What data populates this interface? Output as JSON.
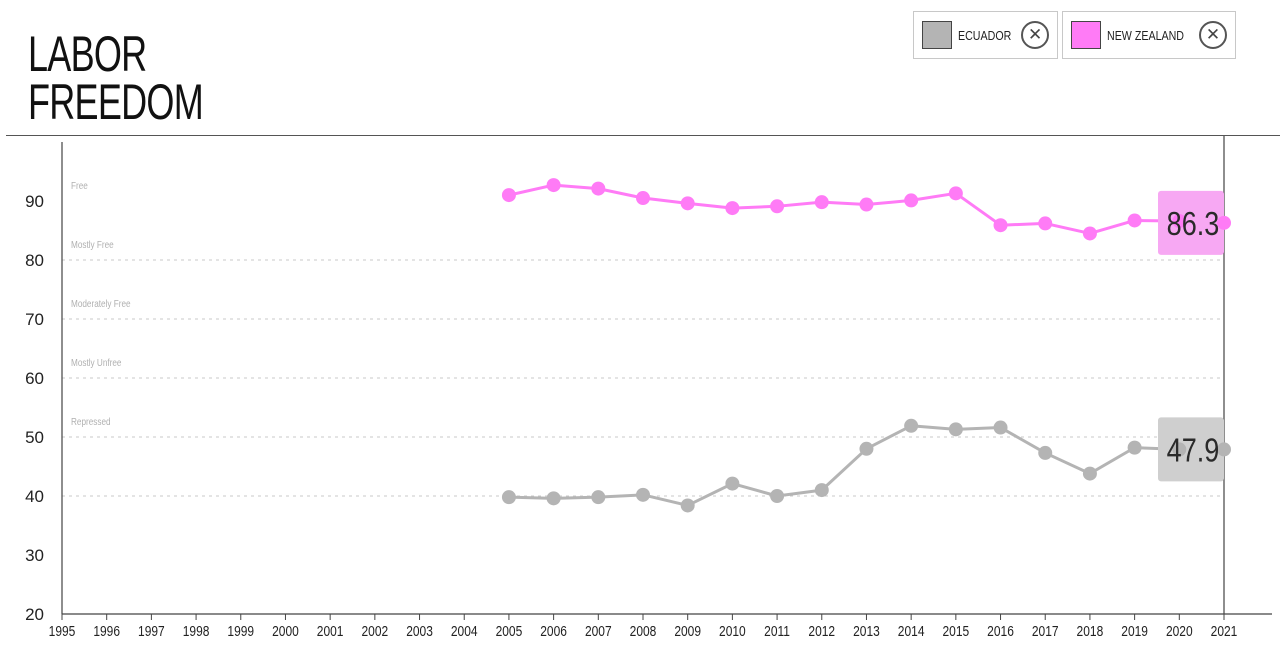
{
  "page": {
    "title_line1": "LABOR",
    "title_line2": "FREEDOM"
  },
  "legend": [
    {
      "label": "ECUADOR",
      "color": "#b4b4b4",
      "close_icon": "close-icon"
    },
    {
      "label": "NEW ZEALAND",
      "color": "#ff7bf6",
      "close_icon": "close-icon"
    }
  ],
  "chart_data": {
    "type": "line",
    "x": [
      1995,
      1996,
      1997,
      1998,
      1999,
      2000,
      2001,
      2002,
      2003,
      2004,
      2005,
      2006,
      2007,
      2008,
      2009,
      2010,
      2011,
      2012,
      2013,
      2014,
      2015,
      2016,
      2017,
      2018,
      2019,
      2020,
      2021
    ],
    "ylim": [
      20,
      100
    ],
    "yticks": [
      20,
      30,
      40,
      50,
      60,
      70,
      80,
      90
    ],
    "grid_dashed_at": [
      40,
      50,
      60,
      70,
      80
    ],
    "bands": [
      {
        "label": "Free",
        "at": 90
      },
      {
        "label": "Mostly Free",
        "at": 80
      },
      {
        "label": "Moderately Free",
        "at": 70
      },
      {
        "label": "Mostly Unfree",
        "at": 60
      },
      {
        "label": "Repressed",
        "at": 50
      }
    ],
    "series": [
      {
        "name": "NEW ZEALAND",
        "color": "#ff7bf6",
        "x": [
          2005,
          2006,
          2007,
          2008,
          2009,
          2010,
          2011,
          2012,
          2013,
          2014,
          2015,
          2016,
          2017,
          2018,
          2019,
          2020,
          2021
        ],
        "values": [
          91.0,
          92.7,
          92.1,
          90.5,
          89.6,
          88.8,
          89.1,
          89.8,
          89.4,
          90.1,
          91.3,
          85.9,
          86.2,
          84.5,
          86.7,
          86.6,
          86.3
        ],
        "label_value": "86.3",
        "label_bg": "#f7a8f3"
      },
      {
        "name": "ECUADOR",
        "color": "#b4b4b4",
        "x": [
          2005,
          2006,
          2007,
          2008,
          2009,
          2010,
          2011,
          2012,
          2013,
          2014,
          2015,
          2016,
          2017,
          2018,
          2019,
          2020,
          2021
        ],
        "values": [
          39.8,
          39.6,
          39.8,
          40.2,
          38.4,
          42.1,
          40.0,
          41.0,
          48.0,
          51.9,
          51.3,
          51.6,
          47.3,
          43.8,
          48.2,
          47.9,
          47.9
        ],
        "label_value": "47.9",
        "label_bg": "#cfcfcf"
      }
    ]
  }
}
